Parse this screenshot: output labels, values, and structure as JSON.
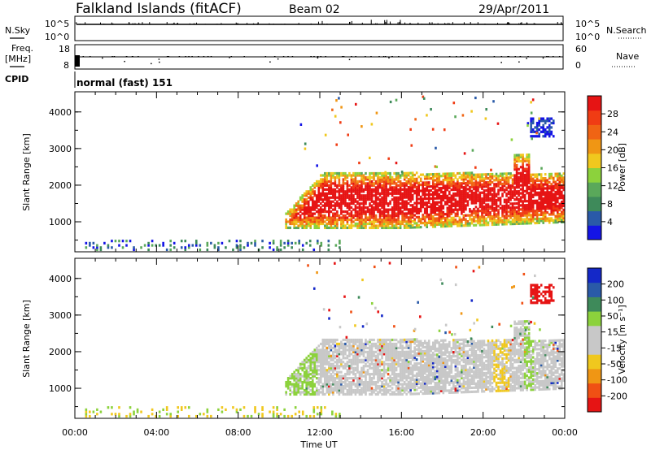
{
  "header": {
    "station": "Falkland Islands (fitACF)",
    "beam": "Beam 02",
    "date": "29/Apr/2011"
  },
  "aux_panels": {
    "nsky": {
      "label": "N.Sky",
      "ticks": [
        "10^5",
        "10^0"
      ]
    },
    "nsearch": {
      "label": "N.Search",
      "ticks": [
        "10^5",
        "10^0"
      ]
    },
    "freq": {
      "label": "Freq.",
      "unit": "[MHz]",
      "ticks": [
        "18",
        "8"
      ]
    },
    "nave": {
      "label": "Nave",
      "ticks": [
        "60",
        "0"
      ]
    },
    "cpid_label": "CPID",
    "cpid_text": "normal (fast) 151"
  },
  "colors": {
    "power_scale": [
      "#1414e6",
      "#2a5aa8",
      "#3e8a5a",
      "#5aa85a",
      "#8cd23c",
      "#f0c81e",
      "#f09614",
      "#f06414",
      "#f03c14",
      "#e61414"
    ],
    "velocity_scale": [
      "#1428c8",
      "#2a5aa8",
      "#3e8a5a",
      "#8cd23c",
      "#c8c8c8",
      "#c8c8c8",
      "#f0c81e",
      "#f09614",
      "#f05014",
      "#e61414"
    ]
  },
  "chart_data": [
    {
      "type": "heatmap",
      "quantity": "power",
      "ylabel": "Slant Range [km]",
      "xlabel": "",
      "ylim": [
        180,
        4550
      ],
      "xlim_hours": [
        0,
        24
      ],
      "yticks": [
        "1000",
        "2000",
        "3000",
        "4000"
      ],
      "colorbar_label": "Power [dB]",
      "colorbar_ticks": [
        "4",
        "8",
        "12",
        "16",
        "20",
        "24",
        "28"
      ],
      "features": [
        {
          "name": "main echo band",
          "start_hour": 10.3,
          "end_hour": 24,
          "range_km": [
            800,
            2300
          ]
        },
        {
          "name": "near-range ground scatter",
          "start_hour": 0,
          "end_hour": 13,
          "range_km": [
            200,
            500
          ]
        },
        {
          "name": "far-range patch",
          "start_hour": 22.3,
          "end_hour": 23.5,
          "range_km": [
            3300,
            3800
          ]
        }
      ]
    },
    {
      "type": "heatmap",
      "quantity": "velocity",
      "ylabel": "Slant Range [km]",
      "xlabel": "Time UT",
      "ylim": [
        180,
        4550
      ],
      "xlim_hours": [
        0,
        24
      ],
      "xticks": [
        "00:00",
        "04:00",
        "08:00",
        "12:00",
        "16:00",
        "20:00",
        "00:00"
      ],
      "yticks": [
        "1000",
        "2000",
        "3000",
        "4000"
      ],
      "colorbar_label": "Velocity [m s⁻¹]",
      "colorbar_ticks": [
        "200",
        "100",
        "50",
        "15",
        "-15",
        "-50",
        "-100",
        "-200"
      ]
    }
  ]
}
